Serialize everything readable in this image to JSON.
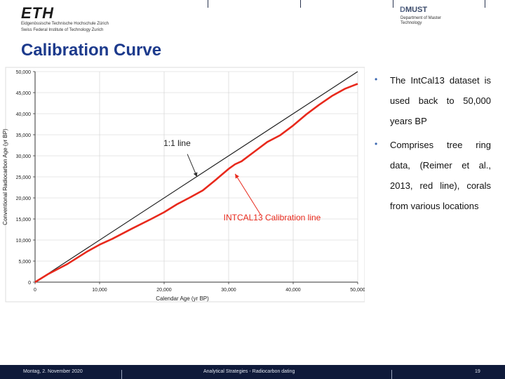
{
  "header": {
    "eth_logo_text": "ETH",
    "eth_line1": "Eidgenössische Technische Hochschule Zürich",
    "eth_line2": "Swiss Federal Institute of Technology Zurich",
    "dept_title_d": "D",
    "dept_title_rest": "MUST",
    "dept_subtitle": "Department of Master Technology"
  },
  "slide_title": "Calibration Curve",
  "bullets": [
    "The IntCal13 dataset is used back to 50,000 years BP",
    "Comprises tree ring data, (Reimer et al., 2013, red line), corals from various locations"
  ],
  "chart_data": {
    "type": "line",
    "xlabel": "Calendar Age (yr BP)",
    "ylabel": "Conventional Radiocarbon Age (yr BP)",
    "xlim": [
      0,
      50000
    ],
    "ylim": [
      0,
      50000
    ],
    "xticks": [
      "0",
      "10,000",
      "20,000",
      "30,000",
      "40,000",
      "50,000"
    ],
    "yticks": [
      "0",
      "5,000",
      "10,000",
      "15,000",
      "20,000",
      "25,000",
      "30,000",
      "35,000",
      "40,000",
      "45,000",
      "50,000"
    ],
    "grid": true,
    "annotations": [
      "1:1 line",
      "INTCAL13 Calibration line"
    ],
    "series": [
      {
        "name": "1:1 line",
        "color": "#222222",
        "x": [
          0,
          50000
        ],
        "y": [
          0,
          50000
        ]
      },
      {
        "name": "INTCAL13 Calibration line",
        "color": "#e8291c",
        "x": [
          0,
          2000,
          5000,
          8000,
          10000,
          12000,
          15000,
          18000,
          20000,
          22000,
          24000,
          26000,
          28000,
          29000,
          30000,
          31000,
          32000,
          34000,
          36000,
          38000,
          40000,
          42000,
          44000,
          46000,
          48000,
          50000
        ],
        "y": [
          0,
          1900,
          4300,
          7200,
          8900,
          10300,
          12700,
          15000,
          16600,
          18500,
          20100,
          21800,
          24300,
          25600,
          26900,
          28000,
          28700,
          31000,
          33300,
          34900,
          37200,
          39800,
          42100,
          44200,
          45900,
          47100
        ]
      }
    ]
  },
  "footer": {
    "date": "Montag, 2. November 2020",
    "course": "Analytical Strategies - Radiocarbon dating",
    "page": "19"
  }
}
